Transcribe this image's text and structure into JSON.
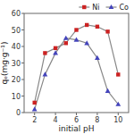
{
  "chart_data": {
    "type": "line",
    "x": [
      2,
      3,
      4,
      5,
      6,
      7,
      8,
      9,
      10
    ],
    "series": [
      {
        "name": "Ni",
        "color": "#cc2222",
        "marker": "square",
        "values": [
          6,
          36,
          39,
          42,
          50,
          53,
          52,
          49,
          23
        ]
      },
      {
        "name": "Co",
        "color": "#4444bb",
        "marker": "triangle",
        "values": [
          2,
          23,
          36,
          45,
          44,
          42,
          33,
          13,
          5
        ]
      }
    ],
    "color": "#888888",
    "xlabel": "initial pH",
    "ylabel": "qₑ(mg·g⁻¹)",
    "xlim": [
      1,
      11
    ],
    "ylim": [
      0,
      60
    ],
    "xticks": [
      2,
      4,
      6,
      8,
      10
    ],
    "yticks": [
      0,
      10,
      20,
      30,
      40,
      50,
      60
    ],
    "legend": "upper right",
    "grid": false
  }
}
